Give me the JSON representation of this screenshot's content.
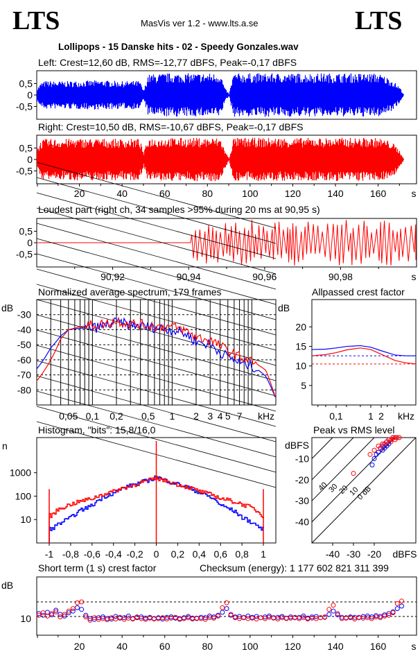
{
  "header": {
    "logo_left": "LTS",
    "logo_right": "LTS",
    "app": "MasVis ver 1.2 - www.lts.a.se",
    "file": "Lollipops - 15 Danske hits  - 02 - Speedy Gonzales.wav"
  },
  "labels": {
    "left": "Left: Crest=12,60 dB, RMS=-12,77 dBFS, Peak=-0,17 dBFS",
    "right": "Right: Crest=10,50 dB, RMS=-10,67 dBFS, Peak=-0,17 dBFS",
    "loudest": "Loudest part (right ch, 34 samples >95% during 20 ms at 90,95 s)",
    "spectrum": "Normalized average spectrum, 179 frames",
    "allpass": "Allpassed crest factor",
    "histogram": "Histogram, \"bits\": 15,8/16,0",
    "peakrms": "Peak vs RMS level",
    "shortterm": "Short term (1 s) crest factor",
    "checksum": "Checksum (energy):  1 177 602 821 311 399"
  },
  "colors": {
    "left": "#0000ff",
    "right": "#ff0000",
    "grid": "#000000"
  },
  "chart_data": [
    {
      "id": "waveform-left",
      "type": "area",
      "series": [
        {
          "name": "Left",
          "color": "#0000ff"
        }
      ],
      "x_range": [
        0,
        178
      ],
      "y_range": [
        -1,
        1
      ],
      "yticks": [
        "0,5",
        "0",
        "-0,5"
      ],
      "envelope": {
        "x": [
          0,
          2,
          4,
          10,
          20,
          30,
          40,
          48,
          50,
          52,
          60,
          70,
          80,
          86,
          88,
          90,
          92,
          100,
          120,
          140,
          160,
          166,
          170,
          172
        ],
        "peak": [
          0.3,
          0.55,
          0.62,
          0.6,
          0.62,
          0.65,
          0.6,
          0.63,
          0.2,
          0.9,
          0.95,
          0.95,
          0.95,
          0.95,
          0.3,
          0.05,
          0.95,
          0.95,
          0.95,
          0.95,
          0.95,
          0.7,
          0.35,
          0.0
        ]
      }
    },
    {
      "id": "waveform-right",
      "type": "area",
      "series": [
        {
          "name": "Right",
          "color": "#ff0000"
        }
      ],
      "x_range": [
        0,
        178
      ],
      "y_range": [
        -1,
        1
      ],
      "yticks": [
        "0,5",
        "0",
        "-0,5"
      ],
      "xticks": [
        "20",
        "40",
        "60",
        "80",
        "100",
        "120",
        "140",
        "160",
        "s"
      ],
      "envelope": {
        "x": [
          0,
          2,
          4,
          10,
          20,
          30,
          40,
          48,
          50,
          52,
          60,
          70,
          80,
          86,
          88,
          90,
          92,
          100,
          120,
          140,
          160,
          166,
          170,
          172
        ],
        "peak": [
          0.5,
          0.85,
          0.9,
          0.9,
          0.92,
          0.92,
          0.9,
          0.92,
          0.3,
          0.95,
          0.95,
          0.95,
          0.95,
          0.95,
          0.4,
          0.05,
          0.95,
          0.95,
          0.95,
          0.95,
          0.95,
          0.8,
          0.4,
          0.0
        ]
      }
    },
    {
      "id": "loudest",
      "type": "line",
      "series": [
        {
          "name": "Right",
          "color": "#ff0000"
        }
      ],
      "x_range": [
        90.9,
        91.0
      ],
      "onset": 90.9405,
      "y_range": [
        -1,
        1
      ],
      "yticks": [
        "0,5",
        "0",
        "-0,5"
      ],
      "xticks": [
        "90,92",
        "90,94",
        "90,96",
        "90,98",
        "s"
      ]
    },
    {
      "id": "spectrum",
      "type": "line",
      "ylabel": "dB",
      "yticks": [
        "-30",
        "-40",
        "-50",
        "-60",
        "-70",
        "-80"
      ],
      "xticks": [
        "0,05",
        "0,1",
        "0,2",
        "0,5",
        "1",
        "2",
        "3",
        "4",
        "5",
        "7",
        "kHz"
      ],
      "series": [
        {
          "name": "Left",
          "color": "#0000ff",
          "x": [
            0.02,
            0.03,
            0.04,
            0.05,
            0.07,
            0.1,
            0.15,
            0.2,
            0.3,
            0.5,
            0.7,
            1,
            1.5,
            2,
            3,
            4,
            5,
            7,
            10,
            15,
            20
          ],
          "y": [
            -66,
            -52,
            -44,
            -40,
            -39,
            -39,
            -37,
            -35,
            -37,
            -38,
            -39,
            -40,
            -43,
            -48,
            -50,
            -55,
            -58,
            -62,
            -64,
            -71,
            -86
          ]
        },
        {
          "name": "Right",
          "color": "#ff0000",
          "x": [
            0.02,
            0.03,
            0.04,
            0.05,
            0.07,
            0.1,
            0.15,
            0.2,
            0.3,
            0.5,
            0.7,
            1,
            1.5,
            2,
            3,
            4,
            5,
            7,
            10,
            15,
            20
          ],
          "y": [
            -74,
            -60,
            -46,
            -40,
            -38,
            -37,
            -36,
            -34,
            -36,
            -37,
            -38,
            -38,
            -41,
            -45,
            -47,
            -51,
            -54,
            -58,
            -61,
            -67,
            -86
          ]
        }
      ]
    },
    {
      "id": "allpass",
      "type": "line",
      "ylabel": "dB",
      "yticks": [
        "20",
        "15",
        "10",
        "5"
      ],
      "xticks": [
        "0,1",
        "1",
        "2",
        "kHz"
      ],
      "series": [
        {
          "name": "Left",
          "color": "#0000ff",
          "x": [
            0.02,
            0.05,
            0.1,
            0.2,
            0.5,
            1,
            2,
            5,
            10,
            20
          ],
          "y": [
            14.2,
            14.3,
            14.6,
            15.0,
            15.2,
            14.8,
            13.9,
            12.8,
            12.6,
            12.6
          ],
          "ref": 12.6
        },
        {
          "name": "Right",
          "color": "#ff0000",
          "x": [
            0.02,
            0.05,
            0.1,
            0.2,
            0.5,
            1,
            2,
            5,
            10,
            20
          ],
          "y": [
            12.6,
            12.9,
            13.4,
            14.1,
            14.6,
            14.2,
            13.0,
            11.4,
            10.8,
            10.5
          ],
          "ref": 10.5
        }
      ]
    },
    {
      "id": "histogram",
      "type": "line",
      "ylabel": "n",
      "yticks": [
        "1000",
        "100",
        "10"
      ],
      "xticks": [
        "-1",
        "-0,8",
        "-0,6",
        "-0,4",
        "-0,2",
        "0",
        "0,2",
        "0,4",
        "0,6",
        "0,8",
        "1"
      ],
      "series": [
        {
          "name": "Left",
          "color": "#0000ff",
          "x": [
            -0.98,
            -0.9,
            -0.8,
            -0.6,
            -0.4,
            -0.2,
            -0.05,
            0,
            0.05,
            0.2,
            0.4,
            0.6,
            0.8,
            0.9,
            0.98
          ],
          "y": [
            4,
            7,
            12,
            40,
            140,
            320,
            520,
            700,
            520,
            320,
            140,
            40,
            12,
            7,
            4
          ]
        },
        {
          "name": "Right",
          "color": "#ff0000",
          "x": [
            -0.98,
            -0.9,
            -0.8,
            -0.6,
            -0.4,
            -0.2,
            -0.05,
            0,
            0.05,
            0.2,
            0.4,
            0.6,
            0.8,
            0.9,
            0.98
          ],
          "y": [
            15,
            30,
            45,
            80,
            160,
            310,
            500,
            600,
            500,
            310,
            160,
            80,
            45,
            30,
            15
          ]
        }
      ]
    },
    {
      "id": "peak-vs-rms",
      "type": "scatter",
      "yticks": [
        "dBFS",
        "-10",
        "-20",
        "-30",
        "-40"
      ],
      "xticks": [
        "-40",
        "-30",
        "-20",
        "dBFS"
      ],
      "diagonals": [
        "40",
        "30",
        "20",
        "10",
        "0 dB"
      ],
      "series": [
        {
          "name": "Left",
          "color": "#0000ff",
          "points": [
            [
              -20,
              -10
            ],
            [
              -18,
              -7
            ],
            [
              -17,
              -5
            ],
            [
              -16,
              -4
            ],
            [
              -15,
              -3
            ],
            [
              -14,
              -2
            ],
            [
              -13,
              -1
            ],
            [
              -12,
              -1
            ],
            [
              -11,
              0
            ],
            [
              -10,
              0
            ],
            [
              -19,
              -8
            ],
            [
              -21,
              -13
            ],
            [
              -16,
              -6
            ],
            [
              -15,
              -5
            ],
            [
              -14,
              -4
            ],
            [
              -13,
              -3
            ]
          ]
        },
        {
          "name": "Right",
          "color": "#ff0000",
          "points": [
            [
              -30,
              -17
            ],
            [
              -22,
              -8
            ],
            [
              -20,
              -6
            ],
            [
              -18,
              -4
            ],
            [
              -16,
              -3
            ],
            [
              -14,
              -2
            ],
            [
              -13,
              -1
            ],
            [
              -12,
              -1
            ],
            [
              -11,
              0
            ],
            [
              -10,
              0
            ],
            [
              -9,
              0
            ],
            [
              -8,
              0
            ],
            [
              -17,
              -5
            ],
            [
              -15,
              -3
            ],
            [
              -12,
              -2
            ],
            [
              -10,
              -1
            ]
          ]
        }
      ]
    },
    {
      "id": "short-term-crest",
      "type": "scatter",
      "ylabel": "dB",
      "yticks": [
        "10"
      ],
      "xticks": [
        "20",
        "40",
        "60",
        "80",
        "100",
        "120",
        "140",
        "160",
        "s"
      ],
      "refs": [
        10.5,
        14.0
      ],
      "series": [
        {
          "name": "Left",
          "color": "#0000ff",
          "x": [
            1,
            3,
            5,
            7,
            9,
            11,
            13,
            15,
            17,
            19,
            21,
            23,
            25,
            27,
            29,
            31,
            33,
            35,
            37,
            39,
            41,
            43,
            45,
            47,
            49,
            51,
            53,
            55,
            57,
            59,
            61,
            63,
            65,
            67,
            69,
            71,
            73,
            75,
            77,
            79,
            81,
            83,
            85,
            87,
            89,
            91,
            93,
            95,
            97,
            99,
            101,
            103,
            105,
            107,
            109,
            111,
            113,
            115,
            117,
            119,
            121,
            123,
            125,
            127,
            129,
            131,
            133,
            135,
            137,
            139,
            141,
            143,
            145,
            147,
            149,
            151,
            153,
            155,
            157,
            159,
            161,
            163,
            165,
            167,
            169,
            171
          ],
          "y": [
            11.2,
            10.8,
            11.5,
            10.9,
            12.0,
            11.0,
            10.6,
            11.4,
            11.8,
            12.6,
            12.2,
            10.8,
            10.0,
            9.8,
            10.2,
            10.4,
            10.0,
            9.9,
            10.5,
            10.1,
            10.2,
            10.6,
            10.0,
            10.2,
            10.4,
            10.1,
            10.3,
            10.0,
            10.2,
            9.9,
            10.3,
            10.4,
            10.1,
            10.0,
            10.2,
            10.5,
            10.1,
            10.0,
            10.3,
            10.2,
            10.6,
            10.4,
            10.8,
            11.5,
            12.4,
            10.8,
            10.4,
            10.5,
            10.2,
            10.6,
            10.3,
            10.5,
            10.2,
            10.4,
            10.6,
            10.2,
            10.3,
            10.5,
            10.1,
            10.4,
            10.2,
            10.3,
            10.6,
            10.1,
            10.4,
            10.5,
            10.2,
            10.3,
            11.0,
            11.8,
            10.9,
            10.3,
            10.2,
            10.4,
            10.3,
            10.2,
            10.5,
            10.6,
            10.4,
            10.7,
            10.5,
            10.9,
            11.2,
            11.6,
            12.4,
            13.0
          ]
        },
        {
          "name": "Right",
          "color": "#ff0000",
          "x": [
            1,
            3,
            5,
            7,
            9,
            11,
            13,
            15,
            17,
            19,
            21,
            23,
            25,
            27,
            29,
            31,
            33,
            35,
            37,
            39,
            41,
            43,
            45,
            47,
            49,
            51,
            53,
            55,
            57,
            59,
            61,
            63,
            65,
            67,
            69,
            71,
            73,
            75,
            77,
            79,
            81,
            83,
            85,
            87,
            89,
            91,
            93,
            95,
            97,
            99,
            101,
            103,
            105,
            107,
            109,
            111,
            113,
            115,
            117,
            119,
            121,
            123,
            125,
            127,
            129,
            131,
            133,
            135,
            137,
            139,
            141,
            143,
            145,
            147,
            149,
            151,
            153,
            155,
            157,
            159,
            161,
            163,
            165,
            167,
            169,
            171
          ],
          "y": [
            10.8,
            11.4,
            10.6,
            11.2,
            11.6,
            10.4,
            11.0,
            11.8,
            12.4,
            13.8,
            14.0,
            10.4,
            9.6,
            10.2,
            9.8,
            10.0,
            9.7,
            10.2,
            9.9,
            10.3,
            9.8,
            10.1,
            9.9,
            10.4,
            10.0,
            9.8,
            10.1,
            9.9,
            10.0,
            10.2,
            9.9,
            10.1,
            10.3,
            9.8,
            10.0,
            10.2,
            9.9,
            10.1,
            10.0,
            9.8,
            10.2,
            10.1,
            10.6,
            12.6,
            13.8,
            11.0,
            10.2,
            10.0,
            10.3,
            10.0,
            10.1,
            9.9,
            10.2,
            10.0,
            10.3,
            10.1,
            9.9,
            10.2,
            10.0,
            10.1,
            10.3,
            10.0,
            10.2,
            9.9,
            10.1,
            10.0,
            10.2,
            10.4,
            12.2,
            13.2,
            11.2,
            10.0,
            10.1,
            10.2,
            9.9,
            10.3,
            10.1,
            10.2,
            10.0,
            10.4,
            10.2,
            10.6,
            10.8,
            11.4,
            13.6,
            14.2
          ]
        }
      ]
    }
  ]
}
